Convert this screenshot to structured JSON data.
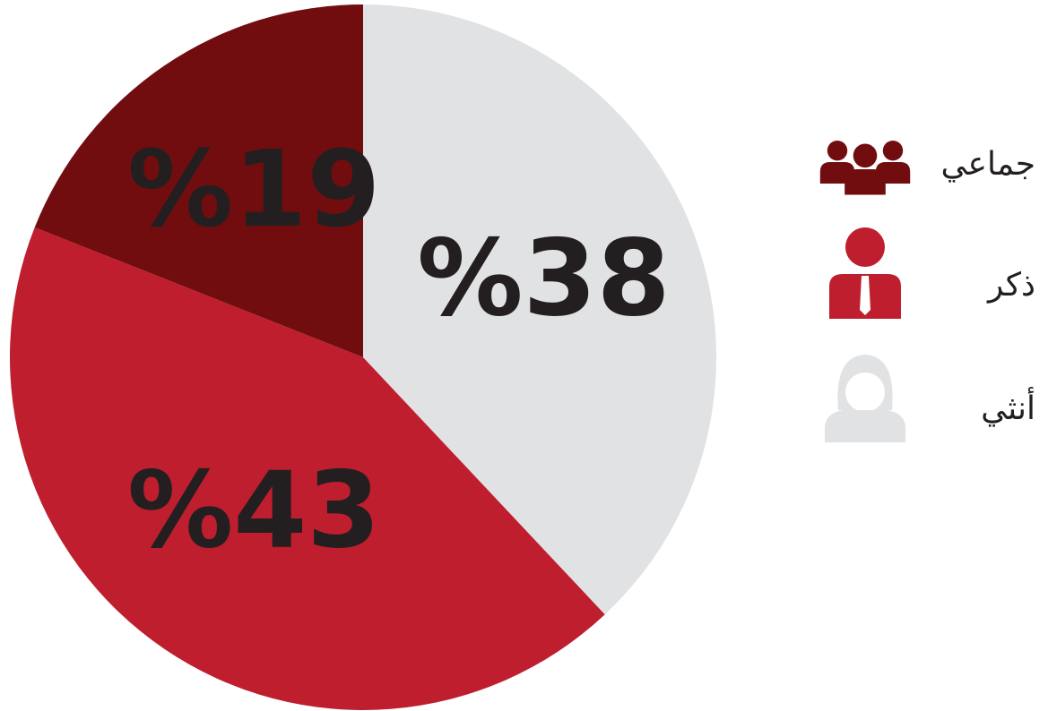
{
  "chart_data": {
    "type": "pie",
    "categories": [
      "أنثي",
      "ذكر",
      "جماعي"
    ],
    "values": [
      38,
      43,
      19
    ],
    "value_labels": [
      "%38",
      "%43",
      "%19"
    ],
    "colors": [
      "#e1e2e4",
      "#be1e2d",
      "#720d0f"
    ],
    "legend": "right"
  }
}
